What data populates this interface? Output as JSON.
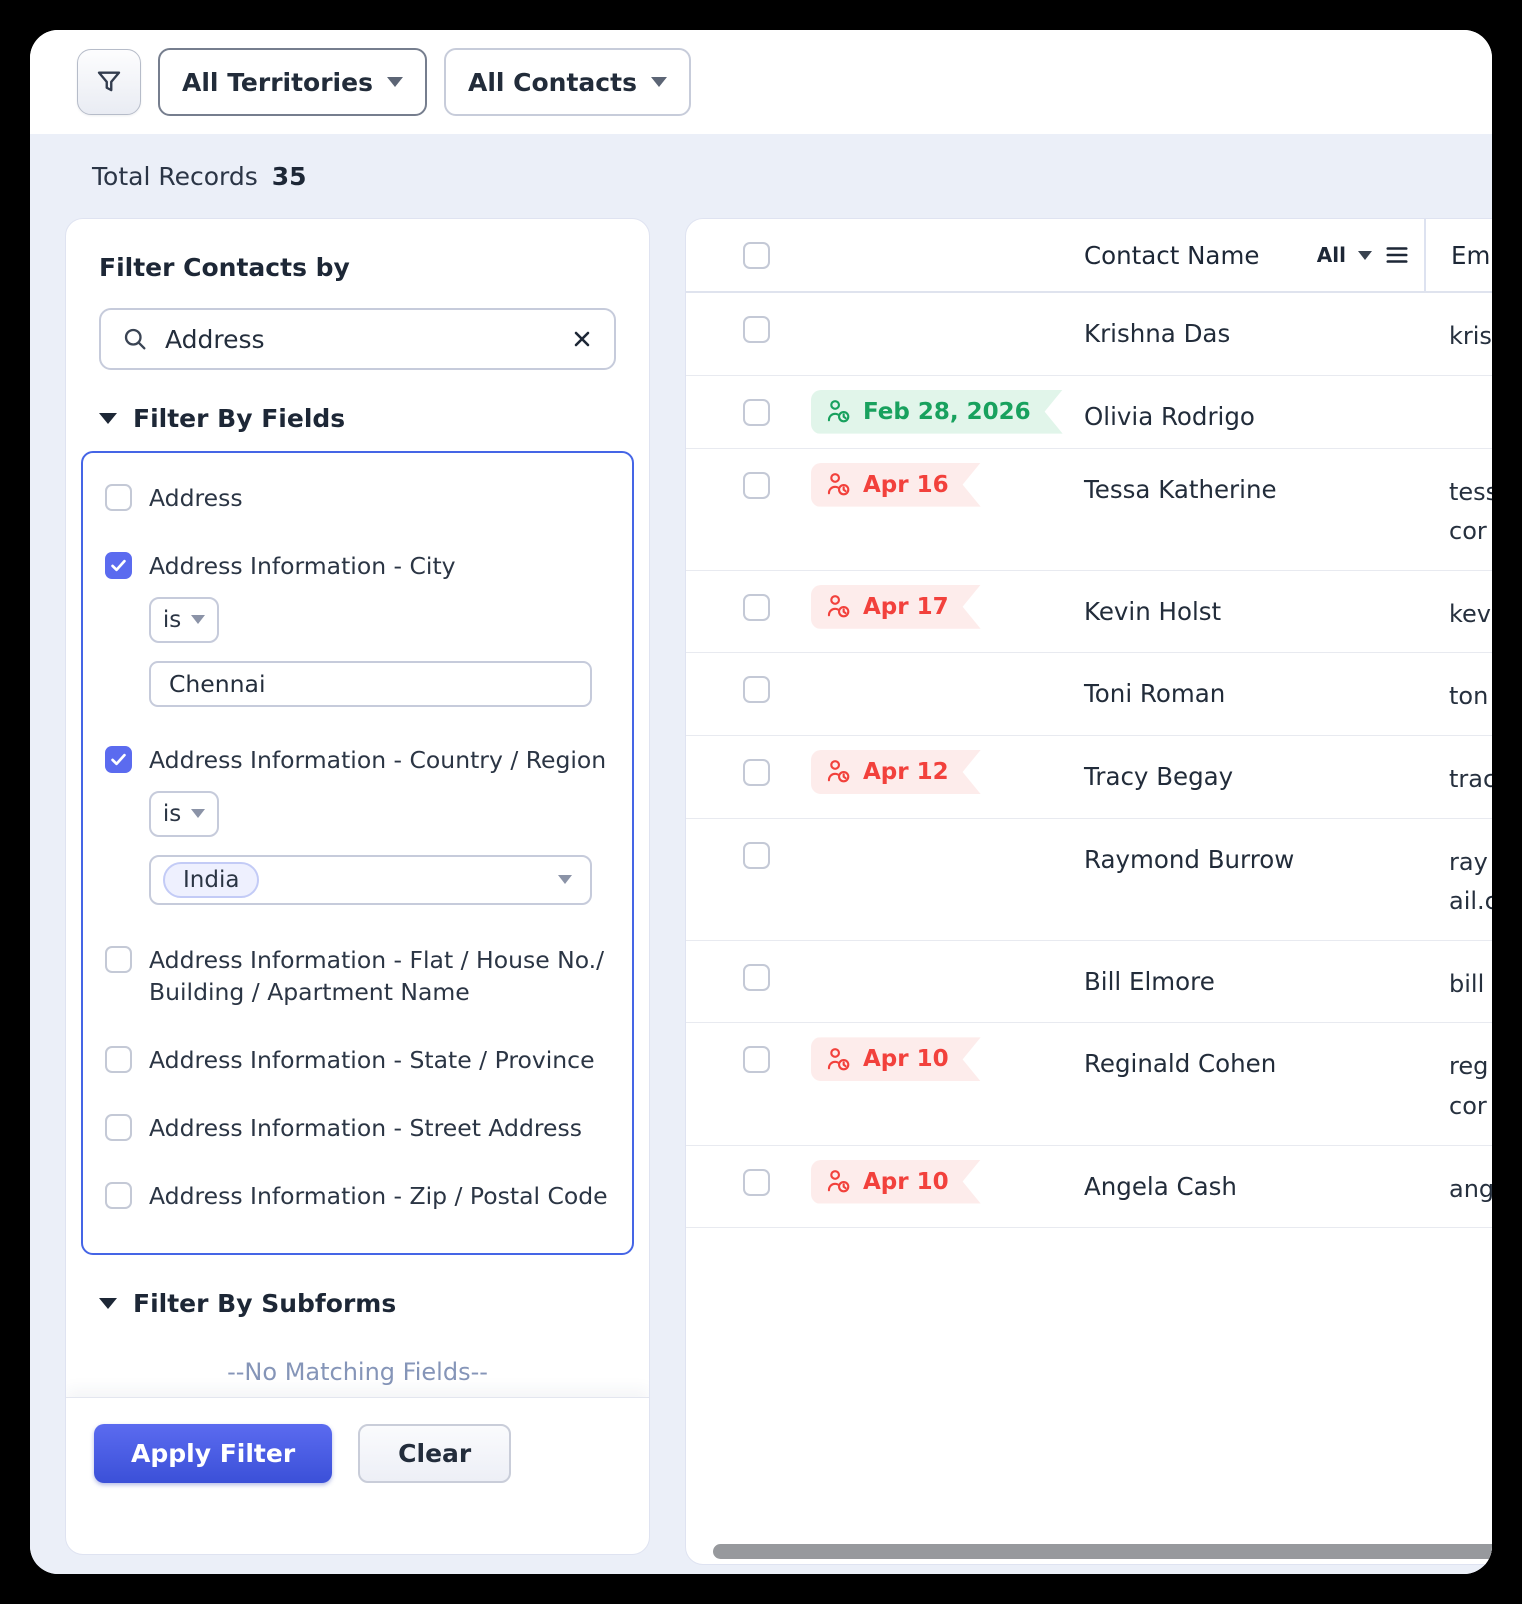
{
  "topbar": {
    "territories_label": "All Territories",
    "contacts_label": "All Contacts"
  },
  "summary": {
    "label": "Total Records",
    "count": "35"
  },
  "filter_panel": {
    "title": "Filter Contacts by",
    "search": {
      "value": "Address"
    },
    "fields_section_label": "Filter By Fields",
    "subforms_section_label": "Filter By Subforms",
    "fields": [
      {
        "label": "Address",
        "checked": false
      },
      {
        "label": "Address Information - City",
        "checked": true,
        "operator": "is",
        "value_type": "text",
        "value": "Chennai"
      },
      {
        "label": "Address Information - Country / Region",
        "checked": true,
        "operator": "is",
        "value_type": "pill",
        "value": "India"
      },
      {
        "label": "Address Information - Flat / House No./ Building / Apartment Name",
        "checked": false
      },
      {
        "label": "Address Information - State / Province",
        "checked": false
      },
      {
        "label": "Address Information - Street Address",
        "checked": false
      },
      {
        "label": "Address Information - Zip / Postal Code",
        "checked": false
      }
    ],
    "no_matching_text": "--No Matching Fields--",
    "apply_label": "Apply Filter",
    "clear_label": "Clear"
  },
  "table": {
    "header": {
      "contact_name": "Contact Name",
      "all_label": "All",
      "email": "Em"
    },
    "rows": [
      {
        "name": "Krishna Das",
        "email_lines": [
          "kris"
        ],
        "badge": null
      },
      {
        "name": "Olivia Rodrigo",
        "email_lines": [],
        "badge": {
          "text": "Feb 28, 2026",
          "type": "green"
        }
      },
      {
        "name": "Tessa Katherine",
        "email_lines": [
          "tess",
          "cor"
        ],
        "badge": {
          "text": "Apr 16",
          "type": "red"
        }
      },
      {
        "name": "Kevin Holst",
        "email_lines": [
          "kev"
        ],
        "badge": {
          "text": "Apr 17",
          "type": "red"
        }
      },
      {
        "name": "Toni Roman",
        "email_lines": [
          "ton"
        ],
        "badge": null
      },
      {
        "name": "Tracy Begay",
        "email_lines": [
          "trac"
        ],
        "badge": {
          "text": "Apr 12",
          "type": "red"
        }
      },
      {
        "name": "Raymond Burrow",
        "email_lines": [
          "ray",
          "ail.c"
        ],
        "badge": null
      },
      {
        "name": "Bill Elmore",
        "email_lines": [
          "bill"
        ],
        "badge": null
      },
      {
        "name": "Reginald Cohen",
        "email_lines": [
          "reg",
          "cor"
        ],
        "badge": {
          "text": "Apr 10",
          "type": "red"
        }
      },
      {
        "name": "Angela Cash",
        "email_lines": [
          "ang"
        ],
        "badge": {
          "text": "Apr 10",
          "type": "red"
        }
      }
    ]
  },
  "colors": {
    "accent_blue": "#5b6bef",
    "fields_box_border": "#4565e6",
    "badge_green_text": "#18a15e",
    "badge_green_bg": "#e1f5ea",
    "badge_red_text": "#f2413c",
    "badge_red_bg": "#fdeceb",
    "content_bg": "#ebeff8"
  }
}
